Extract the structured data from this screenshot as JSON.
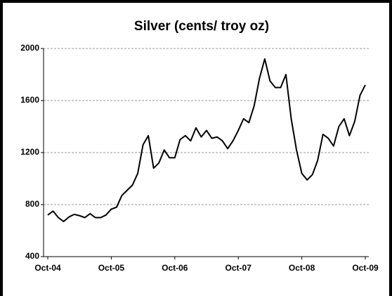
{
  "chart_data": {
    "type": "line",
    "title": "Silver (cents/ troy oz)",
    "categories": [
      "Oct-04",
      null,
      null,
      null,
      null,
      null,
      null,
      null,
      null,
      null,
      null,
      null,
      "Oct-05",
      null,
      null,
      null,
      null,
      null,
      null,
      null,
      null,
      null,
      null,
      null,
      "Oct-06",
      null,
      null,
      null,
      null,
      null,
      null,
      null,
      null,
      null,
      null,
      null,
      "Oct-07",
      null,
      null,
      null,
      null,
      null,
      null,
      null,
      null,
      null,
      null,
      null,
      "Oct-08",
      null,
      null,
      null,
      null,
      null,
      null,
      null,
      null,
      null,
      null,
      null,
      "Oct-09"
    ],
    "series": [
      {
        "name": "Silver",
        "color": "#000000",
        "values": [
          720,
          750,
          700,
          670,
          705,
          725,
          715,
          700,
          730,
          700,
          700,
          720,
          765,
          780,
          870,
          910,
          950,
          1040,
          1260,
          1330,
          1080,
          1120,
          1220,
          1160,
          1160,
          1300,
          1330,
          1290,
          1390,
          1320,
          1370,
          1310,
          1320,
          1290,
          1230,
          1290,
          1370,
          1460,
          1430,
          1560,
          1770,
          1920,
          1750,
          1700,
          1700,
          1800,
          1460,
          1220,
          1040,
          990,
          1030,
          1140,
          1340,
          1310,
          1250,
          1400,
          1460,
          1330,
          1440,
          1640,
          1720
        ]
      }
    ],
    "ylim": [
      400,
      2000
    ],
    "yticks": [
      400,
      800,
      1200,
      1600,
      2000
    ],
    "grid": true
  }
}
